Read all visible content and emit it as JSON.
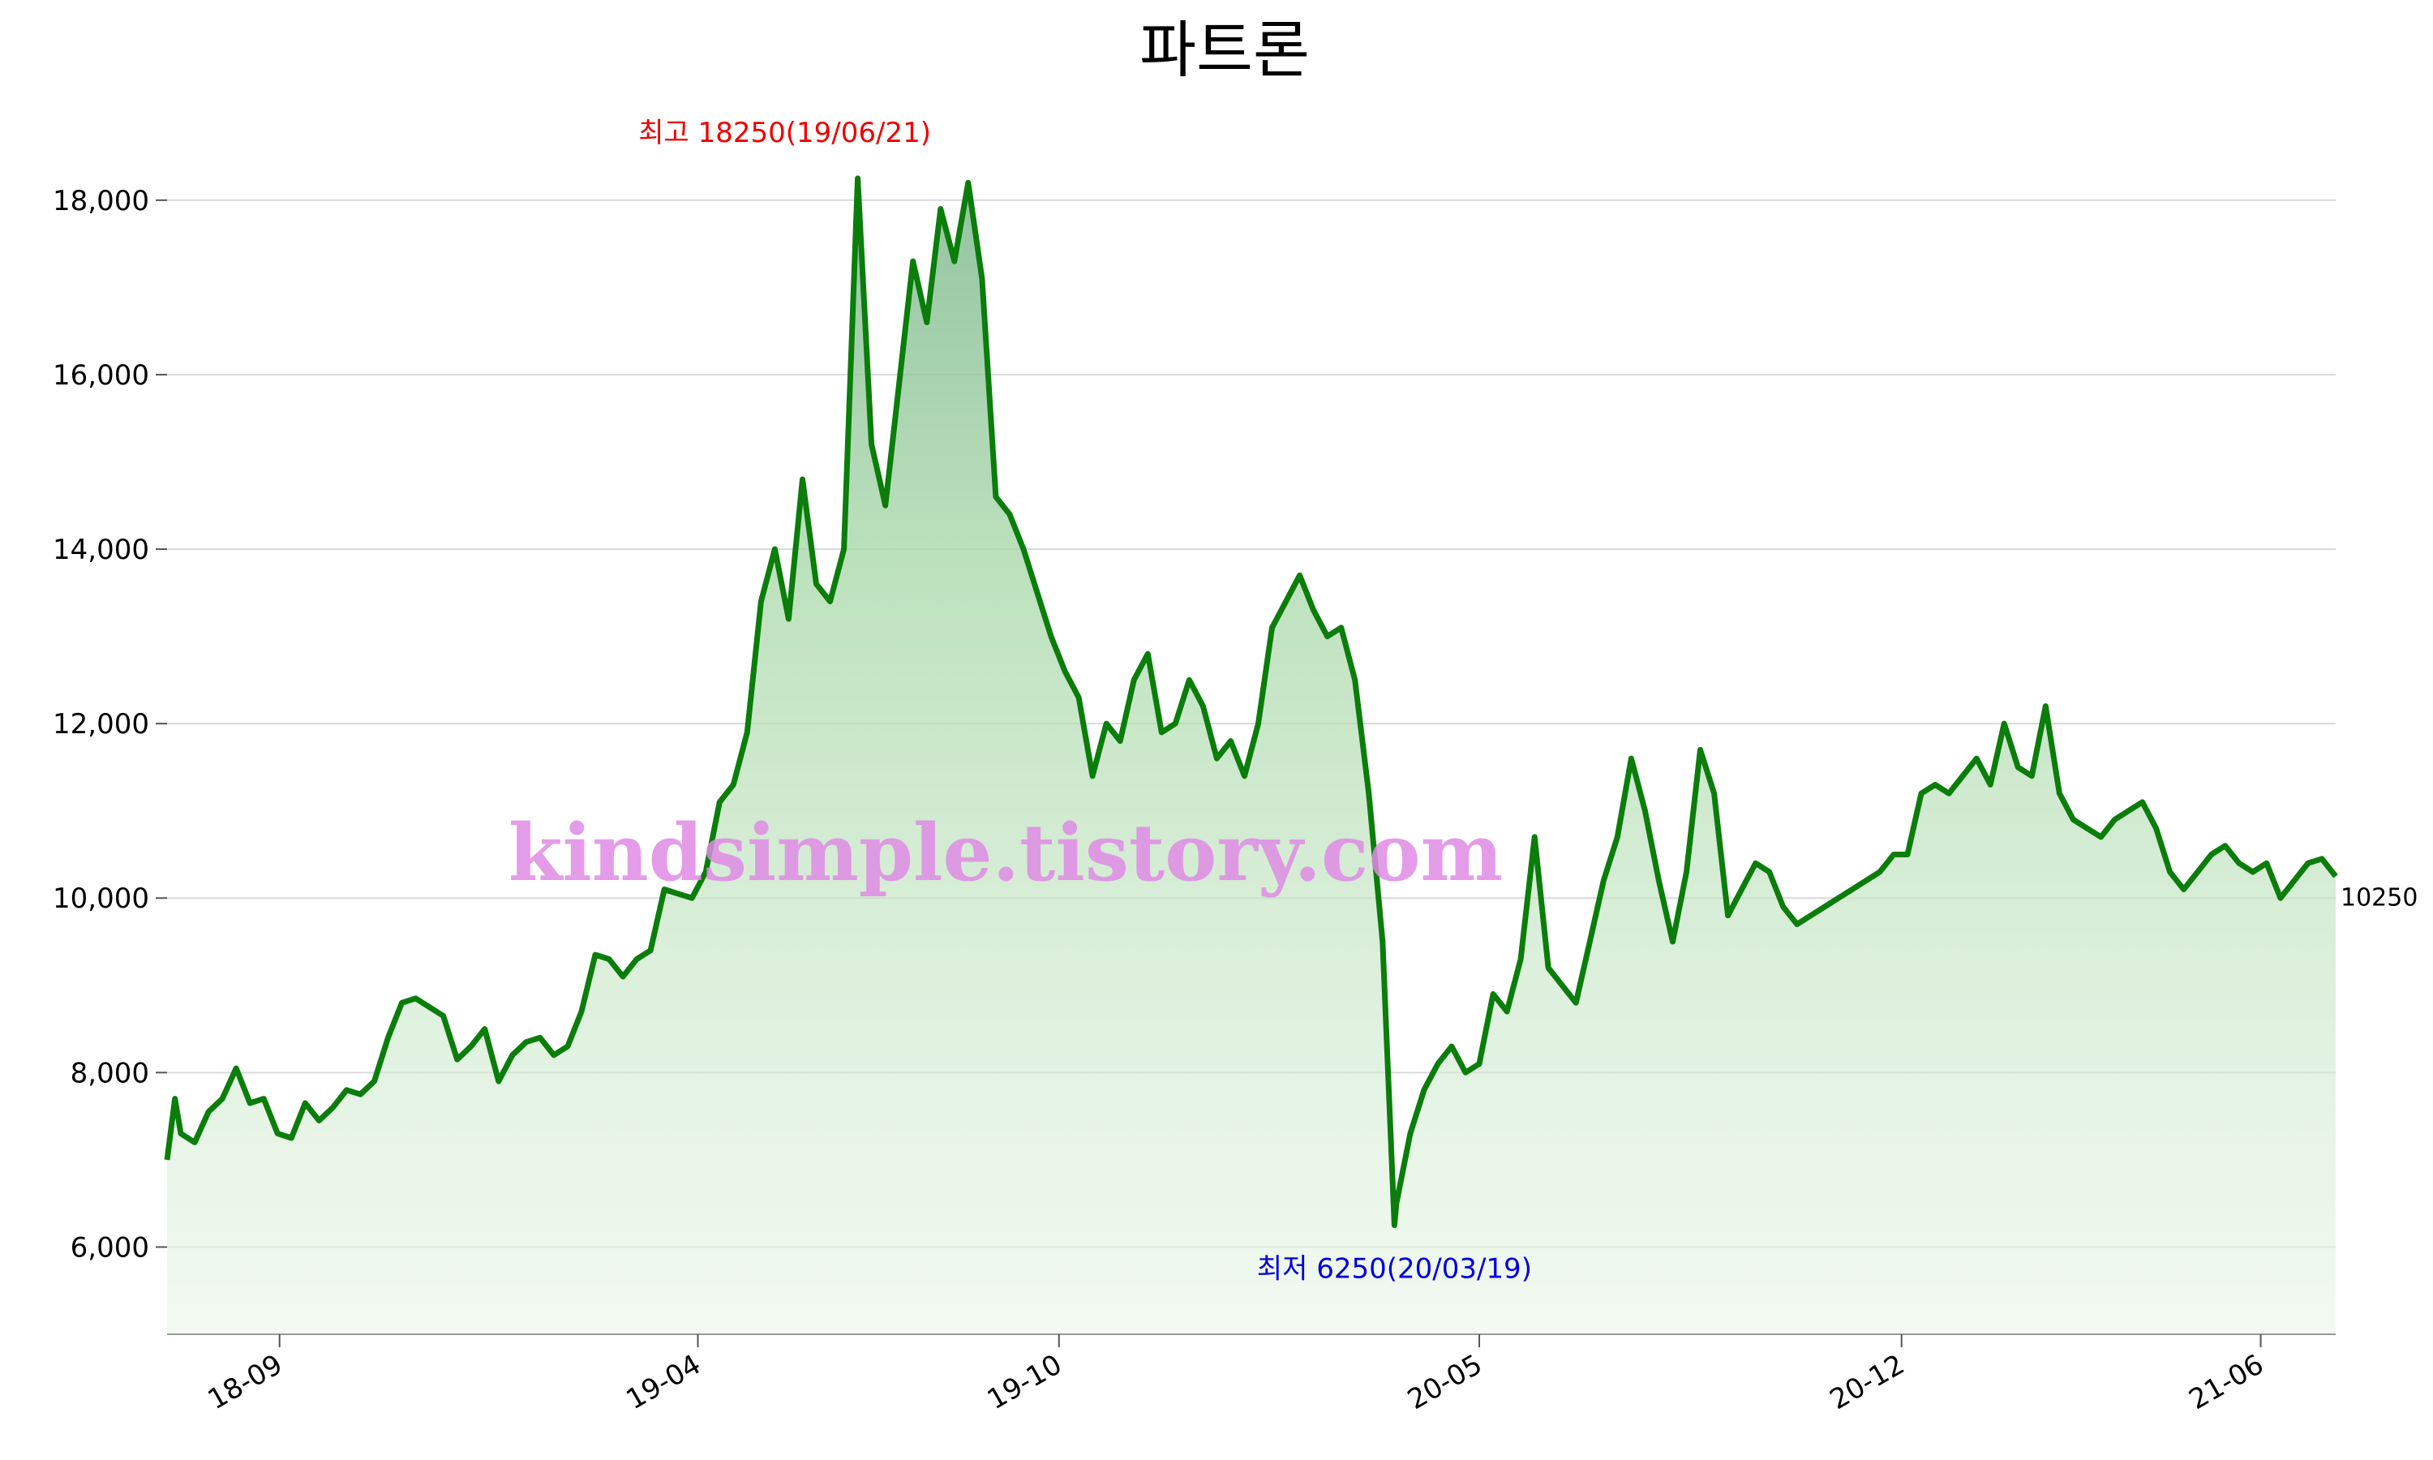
{
  "chart_data": {
    "type": "area",
    "title": "파트론",
    "xlabel": "",
    "ylabel": "",
    "ylim": [
      5000,
      18900
    ],
    "yticks": [
      "6,000",
      "8,000",
      "10,000",
      "12,000",
      "14,000",
      "16,000",
      "18,000"
    ],
    "ytick_values": [
      6000,
      8000,
      10000,
      12000,
      14000,
      16000,
      18000
    ],
    "xticks": [
      "18-09",
      "19-04",
      "19-10",
      "20-05",
      "20-12",
      "21-06"
    ],
    "xtick_dates": [
      "2018-09-01",
      "2019-04-01",
      "2019-10-01",
      "2020-05-01",
      "2020-12-01",
      "2021-06-01"
    ],
    "xlim": [
      "2018-07-06",
      "2021-07-09"
    ],
    "grid": true,
    "line_color": "#0a7d0a",
    "fill_color": "#7fc47f",
    "annotations": {
      "high": {
        "label": "최고 18250(19/06/21)",
        "date": "2019-06-21",
        "value": 18250,
        "color": "#ee0000"
      },
      "low": {
        "label": "최저 6250(20/03/19)",
        "date": "2020-03-19",
        "value": 6250,
        "color": "#0000dd"
      },
      "last": {
        "label": "10250",
        "value": 10250
      }
    },
    "watermark": "kindsimple.tistory.com",
    "series": [
      {
        "points": [
          [
            "2018-07-06",
            7000
          ],
          [
            "2018-07-10",
            7700
          ],
          [
            "2018-07-13",
            7300
          ],
          [
            "2018-07-20",
            7200
          ],
          [
            "2018-07-27",
            7550
          ],
          [
            "2018-08-03",
            7700
          ],
          [
            "2018-08-10",
            8050
          ],
          [
            "2018-08-17",
            7650
          ],
          [
            "2018-08-24",
            7700
          ],
          [
            "2018-08-31",
            7300
          ],
          [
            "2018-09-07",
            7250
          ],
          [
            "2018-09-14",
            7650
          ],
          [
            "2018-09-21",
            7450
          ],
          [
            "2018-09-28",
            7600
          ],
          [
            "2018-10-05",
            7800
          ],
          [
            "2018-10-12",
            7750
          ],
          [
            "2018-10-19",
            7900
          ],
          [
            "2018-10-26",
            8400
          ],
          [
            "2018-11-02",
            8800
          ],
          [
            "2018-11-09",
            8850
          ],
          [
            "2018-11-16",
            8750
          ],
          [
            "2018-11-23",
            8650
          ],
          [
            "2018-11-30",
            8150
          ],
          [
            "2018-12-07",
            8300
          ],
          [
            "2018-12-14",
            8500
          ],
          [
            "2018-12-21",
            7900
          ],
          [
            "2018-12-28",
            8200
          ],
          [
            "2019-01-04",
            8350
          ],
          [
            "2019-01-11",
            8400
          ],
          [
            "2019-01-18",
            8200
          ],
          [
            "2019-01-25",
            8300
          ],
          [
            "2019-02-01",
            8700
          ],
          [
            "2019-02-08",
            9350
          ],
          [
            "2019-02-15",
            9300
          ],
          [
            "2019-02-22",
            9100
          ],
          [
            "2019-03-01",
            9300
          ],
          [
            "2019-03-08",
            9400
          ],
          [
            "2019-03-15",
            10100
          ],
          [
            "2019-03-22",
            10050
          ],
          [
            "2019-03-29",
            10000
          ],
          [
            "2019-04-05",
            10300
          ],
          [
            "2019-04-12",
            11100
          ],
          [
            "2019-04-19",
            11300
          ],
          [
            "2019-04-26",
            11900
          ],
          [
            "2019-05-03",
            13400
          ],
          [
            "2019-05-10",
            14000
          ],
          [
            "2019-05-17",
            13200
          ],
          [
            "2019-05-24",
            14800
          ],
          [
            "2019-05-31",
            13600
          ],
          [
            "2019-06-07",
            13400
          ],
          [
            "2019-06-14",
            14000
          ],
          [
            "2019-06-21",
            18250
          ],
          [
            "2019-06-28",
            15200
          ],
          [
            "2019-07-05",
            14500
          ],
          [
            "2019-07-12",
            15900
          ],
          [
            "2019-07-19",
            17300
          ],
          [
            "2019-07-26",
            16600
          ],
          [
            "2019-08-02",
            17900
          ],
          [
            "2019-08-09",
            17300
          ],
          [
            "2019-08-16",
            18200
          ],
          [
            "2019-08-23",
            17100
          ],
          [
            "2019-08-30",
            14600
          ],
          [
            "2019-09-06",
            14400
          ],
          [
            "2019-09-13",
            14000
          ],
          [
            "2019-09-20",
            13500
          ],
          [
            "2019-09-27",
            13000
          ],
          [
            "2019-10-04",
            12600
          ],
          [
            "2019-10-11",
            12300
          ],
          [
            "2019-10-18",
            11400
          ],
          [
            "2019-10-25",
            12000
          ],
          [
            "2019-11-01",
            11800
          ],
          [
            "2019-11-08",
            12500
          ],
          [
            "2019-11-15",
            12800
          ],
          [
            "2019-11-22",
            11900
          ],
          [
            "2019-11-29",
            12000
          ],
          [
            "2019-12-06",
            12500
          ],
          [
            "2019-12-13",
            12200
          ],
          [
            "2019-12-20",
            11600
          ],
          [
            "2019-12-27",
            11800
          ],
          [
            "2020-01-03",
            11400
          ],
          [
            "2020-01-10",
            12000
          ],
          [
            "2020-01-17",
            13100
          ],
          [
            "2020-01-24",
            13400
          ],
          [
            "2020-01-31",
            13700
          ],
          [
            "2020-02-07",
            13300
          ],
          [
            "2020-02-14",
            13000
          ],
          [
            "2020-02-21",
            13100
          ],
          [
            "2020-02-28",
            12500
          ],
          [
            "2020-03-06",
            11200
          ],
          [
            "2020-03-13",
            9500
          ],
          [
            "2020-03-19",
            6250
          ],
          [
            "2020-03-20",
            6500
          ],
          [
            "2020-03-27",
            7300
          ],
          [
            "2020-04-03",
            7800
          ],
          [
            "2020-04-10",
            8100
          ],
          [
            "2020-04-17",
            8300
          ],
          [
            "2020-04-24",
            8000
          ],
          [
            "2020-05-01",
            8100
          ],
          [
            "2020-05-08",
            8900
          ],
          [
            "2020-05-15",
            8700
          ],
          [
            "2020-05-22",
            9300
          ],
          [
            "2020-05-29",
            10700
          ],
          [
            "2020-06-05",
            9200
          ],
          [
            "2020-06-12",
            9000
          ],
          [
            "2020-06-19",
            8800
          ],
          [
            "2020-06-26",
            9500
          ],
          [
            "2020-07-03",
            10200
          ],
          [
            "2020-07-10",
            10700
          ],
          [
            "2020-07-17",
            11600
          ],
          [
            "2020-07-24",
            11000
          ],
          [
            "2020-07-31",
            10200
          ],
          [
            "2020-08-07",
            9500
          ],
          [
            "2020-08-14",
            10300
          ],
          [
            "2020-08-21",
            11700
          ],
          [
            "2020-08-28",
            11200
          ],
          [
            "2020-09-04",
            9800
          ],
          [
            "2020-09-11",
            10100
          ],
          [
            "2020-09-18",
            10400
          ],
          [
            "2020-09-25",
            10300
          ],
          [
            "2020-10-02",
            9900
          ],
          [
            "2020-10-09",
            9700
          ],
          [
            "2020-10-16",
            9800
          ],
          [
            "2020-10-23",
            9900
          ],
          [
            "2020-10-30",
            10000
          ],
          [
            "2020-11-06",
            10100
          ],
          [
            "2020-11-13",
            10200
          ],
          [
            "2020-11-20",
            10300
          ],
          [
            "2020-11-27",
            10500
          ],
          [
            "2020-12-04",
            10500
          ],
          [
            "2020-12-11",
            11200
          ],
          [
            "2020-12-18",
            11300
          ],
          [
            "2020-12-25",
            11200
          ],
          [
            "2021-01-01",
            11400
          ],
          [
            "2021-01-08",
            11600
          ],
          [
            "2021-01-15",
            11300
          ],
          [
            "2021-01-22",
            12000
          ],
          [
            "2021-01-29",
            11500
          ],
          [
            "2021-02-05",
            11400
          ],
          [
            "2021-02-12",
            12200
          ],
          [
            "2021-02-19",
            11200
          ],
          [
            "2021-02-26",
            10900
          ],
          [
            "2021-03-05",
            10800
          ],
          [
            "2021-03-12",
            10700
          ],
          [
            "2021-03-19",
            10900
          ],
          [
            "2021-03-26",
            11000
          ],
          [
            "2021-04-02",
            11100
          ],
          [
            "2021-04-09",
            10800
          ],
          [
            "2021-04-16",
            10300
          ],
          [
            "2021-04-23",
            10100
          ],
          [
            "2021-04-30",
            10300
          ],
          [
            "2021-05-07",
            10500
          ],
          [
            "2021-05-14",
            10600
          ],
          [
            "2021-05-21",
            10400
          ],
          [
            "2021-05-28",
            10300
          ],
          [
            "2021-06-04",
            10400
          ],
          [
            "2021-06-11",
            10000
          ],
          [
            "2021-06-18",
            10200
          ],
          [
            "2021-06-25",
            10400
          ],
          [
            "2021-07-02",
            10450
          ],
          [
            "2021-07-09",
            10250
          ]
        ]
      }
    ]
  }
}
